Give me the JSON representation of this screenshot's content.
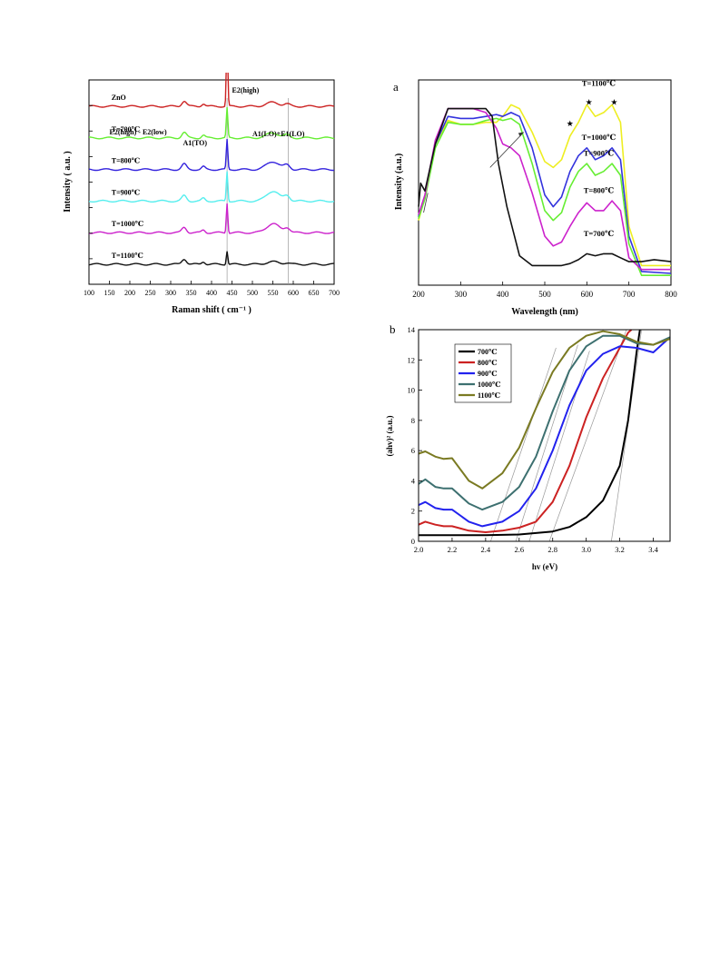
{
  "chart_data": [
    {
      "id": "raman",
      "type": "line",
      "xlabel": "Raman shift ( cm⁻¹ )",
      "ylabel": "Intensity ( a.u. )",
      "xlim": [
        100,
        700
      ],
      "xticks": [
        "100",
        "150",
        "200",
        "250",
        "300",
        "350",
        "400",
        "450",
        "500",
        "550",
        "600",
        "650",
        "700"
      ],
      "peaks": [
        {
          "x": 333,
          "label": "E2(high) - E2(low)"
        },
        {
          "x": 380,
          "label": "A1(TO)"
        },
        {
          "x": 438,
          "label": "E2(high)"
        },
        {
          "x": 585,
          "label": "A1(LO)+E1(LO)"
        }
      ],
      "reference_lines": [
        438,
        588
      ],
      "series": [
        {
          "name": "ZnO",
          "color": "#cc2222",
          "offset": 6,
          "feature": 0.4
        },
        {
          "name": "T=700℃",
          "color": "#66ee33",
          "offset": 5,
          "feature": 0.5
        },
        {
          "name": "T=800℃",
          "color": "#3322dd",
          "offset": 4,
          "feature": 0.8
        },
        {
          "name": "T=900℃",
          "color": "#55eeee",
          "offset": 3,
          "feature": 1.0
        },
        {
          "name": "T=1000℃",
          "color": "#cc22cc",
          "offset": 2,
          "feature": 0.9
        },
        {
          "name": "T=1100℃",
          "color": "#111111",
          "offset": 1,
          "feature": 0.25
        }
      ]
    },
    {
      "id": "absorbance",
      "panel": "a",
      "type": "line",
      "xlabel": "Wavelength (nm)",
      "ylabel": "Intensity (a.u.)",
      "xlim": [
        200,
        800
      ],
      "xticks": [
        "200",
        "300",
        "400",
        "500",
        "600",
        "700",
        "800"
      ],
      "series": [
        {
          "name": "T=1100℃",
          "color": "#eeee22",
          "x": [
            200,
            215,
            240,
            270,
            300,
            330,
            360,
            385,
            400,
            420,
            440,
            470,
            500,
            520,
            540,
            560,
            580,
            600,
            620,
            640,
            660,
            680,
            700,
            730,
            800
          ],
          "y": [
            0.33,
            0.45,
            0.72,
            0.84,
            0.82,
            0.82,
            0.83,
            0.83,
            0.86,
            0.92,
            0.9,
            0.78,
            0.63,
            0.6,
            0.64,
            0.76,
            0.83,
            0.92,
            0.86,
            0.88,
            0.92,
            0.83,
            0.3,
            0.1,
            0.1
          ]
        },
        {
          "name": "T=1000℃",
          "color": "#3333dd",
          "x": [
            200,
            215,
            240,
            270,
            300,
            330,
            360,
            385,
            400,
            420,
            440,
            470,
            500,
            520,
            540,
            560,
            580,
            600,
            620,
            640,
            660,
            680,
            700,
            730,
            800
          ],
          "y": [
            0.35,
            0.45,
            0.72,
            0.86,
            0.85,
            0.85,
            0.86,
            0.87,
            0.86,
            0.88,
            0.86,
            0.7,
            0.46,
            0.4,
            0.45,
            0.58,
            0.66,
            0.7,
            0.64,
            0.66,
            0.7,
            0.64,
            0.25,
            0.07,
            0.06
          ]
        },
        {
          "name": "T=900℃",
          "color": "#66ee33",
          "x": [
            200,
            215,
            240,
            270,
            300,
            330,
            360,
            385,
            400,
            420,
            440,
            470,
            500,
            520,
            540,
            560,
            580,
            600,
            620,
            640,
            660,
            680,
            700,
            730,
            800
          ],
          "y": [
            0.34,
            0.44,
            0.7,
            0.83,
            0.82,
            0.82,
            0.84,
            0.85,
            0.84,
            0.85,
            0.82,
            0.62,
            0.38,
            0.33,
            0.37,
            0.5,
            0.58,
            0.62,
            0.56,
            0.58,
            0.62,
            0.56,
            0.21,
            0.05,
            0.05
          ]
        },
        {
          "name": "T=800℃",
          "color": "#cc22cc",
          "x": [
            200,
            215,
            240,
            270,
            300,
            330,
            360,
            385,
            400,
            420,
            440,
            470,
            500,
            520,
            540,
            560,
            580,
            600,
            620,
            640,
            660,
            680,
            700,
            730,
            800
          ],
          "y": [
            0.36,
            0.46,
            0.74,
            0.9,
            0.9,
            0.9,
            0.88,
            0.8,
            0.72,
            0.7,
            0.66,
            0.47,
            0.25,
            0.2,
            0.22,
            0.3,
            0.37,
            0.42,
            0.38,
            0.38,
            0.43,
            0.38,
            0.14,
            0.08,
            0.08
          ]
        },
        {
          "name": "T=700℃",
          "color": "#111111",
          "x": [
            200,
            205,
            215,
            240,
            270,
            300,
            330,
            360,
            375,
            390,
            410,
            440,
            470,
            500,
            520,
            540,
            560,
            580,
            600,
            620,
            640,
            660,
            680,
            700,
            730,
            760,
            800
          ],
          "y": [
            0.4,
            0.52,
            0.48,
            0.72,
            0.9,
            0.9,
            0.9,
            0.9,
            0.86,
            0.62,
            0.4,
            0.15,
            0.1,
            0.1,
            0.1,
            0.1,
            0.11,
            0.13,
            0.16,
            0.15,
            0.16,
            0.16,
            0.14,
            0.12,
            0.12,
            0.13,
            0.12
          ]
        }
      ],
      "labels": [
        "T=1100℃",
        "T=1000℃",
        "T=900℃",
        "T=800℃",
        "T=700℃"
      ]
    },
    {
      "id": "tauc",
      "panel": "b",
      "type": "line",
      "xlabel": "hv (eV)",
      "ylabel": "(ahv)² (a.u.)",
      "xlim": [
        2.0,
        3.5
      ],
      "ylim": [
        0,
        14
      ],
      "xticks": [
        "2.0",
        "2.2",
        "2.4",
        "2.6",
        "2.8",
        "3.0",
        "3.2",
        "3.4"
      ],
      "yticks": [
        "0",
        "2",
        "4",
        "6",
        "8",
        "10",
        "12",
        "14"
      ],
      "legend_position": "top-left",
      "series": [
        {
          "name": "700℃",
          "color": "#000000",
          "x": [
            2.0,
            2.2,
            2.4,
            2.6,
            2.8,
            2.9,
            3.0,
            3.1,
            3.2,
            3.25,
            3.3,
            3.32
          ],
          "y": [
            0.4,
            0.4,
            0.4,
            0.45,
            0.65,
            0.95,
            1.6,
            2.7,
            5.0,
            8.0,
            12.5,
            14.0
          ]
        },
        {
          "name": "800℃",
          "color": "#cc2222",
          "x": [
            2.0,
            2.04,
            2.1,
            2.15,
            2.2,
            2.3,
            2.4,
            2.5,
            2.6,
            2.7,
            2.8,
            2.9,
            3.0,
            3.1,
            3.2,
            3.25,
            3.27
          ],
          "y": [
            1.1,
            1.3,
            1.1,
            1.0,
            1.0,
            0.7,
            0.6,
            0.7,
            0.9,
            1.3,
            2.6,
            5.0,
            8.2,
            10.8,
            12.8,
            13.8,
            14.0
          ]
        },
        {
          "name": "900℃",
          "color": "#2222ee",
          "x": [
            2.0,
            2.04,
            2.1,
            2.15,
            2.2,
            2.3,
            2.38,
            2.5,
            2.6,
            2.7,
            2.8,
            2.9,
            3.0,
            3.1,
            3.2,
            3.3,
            3.4,
            3.5
          ],
          "y": [
            2.4,
            2.6,
            2.2,
            2.1,
            2.1,
            1.3,
            1.0,
            1.3,
            2.0,
            3.5,
            6.0,
            9.0,
            11.3,
            12.4,
            12.9,
            12.8,
            12.5,
            13.5
          ]
        },
        {
          "name": "1000℃",
          "color": "#3d7070",
          "x": [
            2.0,
            2.04,
            2.1,
            2.15,
            2.2,
            2.3,
            2.38,
            2.5,
            2.6,
            2.7,
            2.8,
            2.9,
            3.0,
            3.1,
            3.2,
            3.3,
            3.4,
            3.5
          ],
          "y": [
            3.8,
            4.1,
            3.6,
            3.5,
            3.5,
            2.5,
            2.1,
            2.6,
            3.6,
            5.6,
            8.6,
            11.3,
            12.9,
            13.6,
            13.6,
            13.1,
            13.0,
            13.5
          ]
        },
        {
          "name": "1100℃",
          "color": "#7a7a22",
          "x": [
            2.0,
            2.04,
            2.1,
            2.15,
            2.2,
            2.3,
            2.38,
            2.5,
            2.6,
            2.7,
            2.8,
            2.9,
            3.0,
            3.1,
            3.2,
            3.3,
            3.4,
            3.5
          ],
          "y": [
            5.8,
            5.95,
            5.6,
            5.45,
            5.5,
            4.0,
            3.5,
            4.5,
            6.2,
            8.8,
            11.2,
            12.8,
            13.6,
            13.9,
            13.7,
            13.2,
            13.0,
            13.4
          ]
        }
      ],
      "tangents": [
        {
          "x": [
            3.15,
            3.33
          ],
          "y": [
            0,
            14
          ]
        },
        {
          "x": [
            2.78,
            3.24
          ],
          "y": [
            0,
            14
          ]
        },
        {
          "x": [
            2.66,
            3.02
          ],
          "y": [
            0,
            12.6
          ]
        },
        {
          "x": [
            2.58,
            2.95
          ],
          "y": [
            0,
            13.0
          ]
        },
        {
          "x": [
            2.43,
            2.82
          ],
          "y": [
            0,
            12.8
          ]
        }
      ]
    }
  ]
}
